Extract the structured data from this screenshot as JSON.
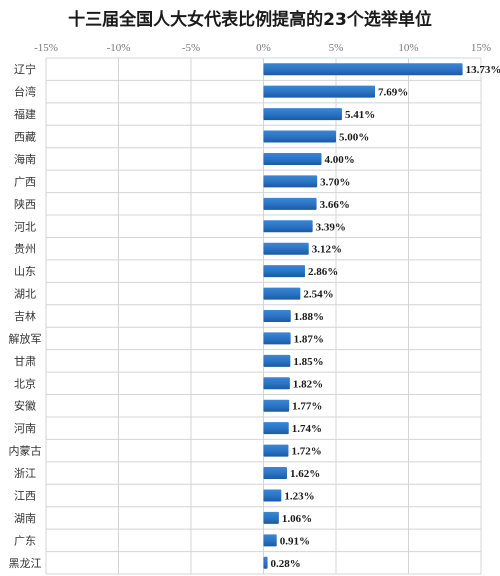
{
  "chart_data": {
    "type": "bar",
    "orientation": "horizontal",
    "title": "十三届全国人大女代表比例提高的23个选举单位",
    "xlabel": "",
    "ylabel": "",
    "xlim": [
      -15,
      15
    ],
    "x_ticks": [
      -15,
      -10,
      -5,
      0,
      5,
      10,
      15
    ],
    "x_tick_labels": [
      "-15%",
      "-10%",
      "-5%",
      "0%",
      "5%",
      "10%",
      "15%"
    ],
    "grid": true,
    "legend": "none",
    "categories": [
      "辽宁",
      "台湾",
      "福建",
      "西藏",
      "海南",
      "广西",
      "陕西",
      "河北",
      "贵州",
      "山东",
      "湖北",
      "吉林",
      "解放军",
      "甘肃",
      "北京",
      "安徽",
      "河南",
      "内蒙古",
      "浙江",
      "江西",
      "湖南",
      "广东",
      "黑龙江"
    ],
    "values": [
      13.73,
      7.69,
      5.41,
      5.0,
      4.0,
      3.7,
      3.66,
      3.39,
      3.12,
      2.86,
      2.54,
      1.88,
      1.87,
      1.85,
      1.82,
      1.77,
      1.74,
      1.72,
      1.62,
      1.23,
      1.06,
      0.91,
      0.28
    ],
    "value_labels": [
      "13.73%",
      "7.69%",
      "5.41%",
      "5.00%",
      "4.00%",
      "3.70%",
      "3.66%",
      "3.39%",
      "3.12%",
      "2.86%",
      "2.54%",
      "1.88%",
      "1.87%",
      "1.85%",
      "1.82%",
      "1.77%",
      "1.74%",
      "1.72%",
      "1.62%",
      "1.23%",
      "1.06%",
      "0.91%",
      "0.28%"
    ],
    "colors": {
      "bar": "#2a72c2",
      "bar_dark": "#1b5aa3",
      "grid": "#d4d4d4",
      "title": "#1a1a1a"
    }
  }
}
